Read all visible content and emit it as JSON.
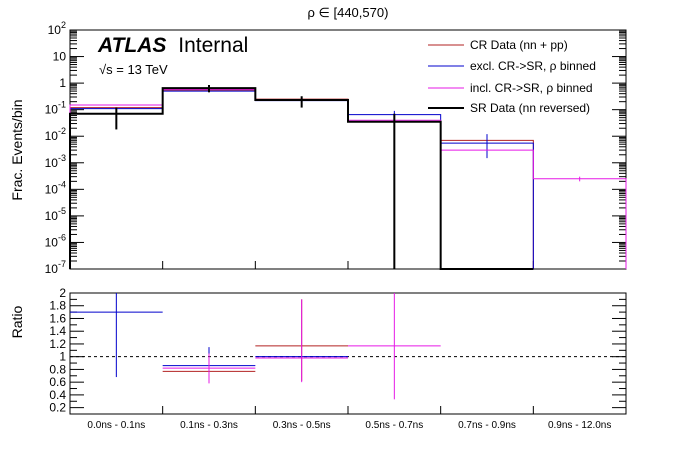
{
  "chart_data": [
    {
      "type": "line",
      "title": "ρ ∈ [440,570)",
      "ylabel": "Frac. Events/bin",
      "yscale": "log",
      "ylim": [
        1e-07,
        100
      ],
      "y_ticks": [
        "10^-7",
        "10^-6",
        "10^-5",
        "10^-4",
        "10^-3",
        "10^-2",
        "10^-1",
        "1",
        "10",
        "10^2"
      ],
      "categories": [
        "0.0ns - 0.1ns",
        "0.1ns - 0.3ns",
        "0.3ns - 0.5ns",
        "0.5ns - 0.7ns",
        "0.7ns - 0.9ns",
        "0.9ns - 12.0ns"
      ],
      "labels": {
        "atlas": "ATLAS",
        "internal": "Internal",
        "energy": "√s = 13 TeV"
      },
      "legend_position": "top-right",
      "series": [
        {
          "name": "CR Data (nn + pp)",
          "color": "#b22222",
          "values": [
            0.12,
            0.55,
            0.25,
            0.035,
            0.007,
            null
          ],
          "err_low": [
            null,
            null,
            null,
            null,
            null,
            null
          ],
          "err_high": [
            null,
            null,
            null,
            null,
            null,
            null
          ]
        },
        {
          "name": "excl. CR->SR, ρ binned",
          "color": "#0000cc",
          "values": [
            0.11,
            0.5,
            0.22,
            0.065,
            0.0055,
            null
          ],
          "err_low": [
            null,
            null,
            null,
            1e-07,
            0.0015,
            null
          ],
          "err_high": [
            null,
            null,
            null,
            0.09,
            0.012,
            null
          ]
        },
        {
          "name": "incl. CR->SR, ρ binned",
          "color": "#e619e6",
          "values": [
            0.15,
            0.58,
            0.24,
            0.04,
            0.003,
            0.00025
          ],
          "err_low": [
            null,
            null,
            null,
            null,
            null,
            0.0002
          ],
          "err_high": [
            null,
            null,
            null,
            null,
            null,
            0.0003
          ]
        },
        {
          "name": "SR Data (nn reversed)",
          "color": "#000000",
          "values": [
            0.07,
            0.65,
            0.23,
            0.035,
            1e-07,
            null
          ],
          "err_low": [
            0.018,
            0.45,
            0.12,
            1e-07,
            null,
            null
          ],
          "err_high": [
            0.12,
            0.85,
            0.32,
            0.07,
            null,
            null
          ]
        }
      ]
    },
    {
      "type": "line",
      "ylabel": "Ratio",
      "ylim": [
        0.1,
        2.0
      ],
      "y_ticks": [
        "0.2",
        "0.4",
        "0.6",
        "0.8",
        "1",
        "1.2",
        "1.4",
        "1.6",
        "1.8",
        "2"
      ],
      "reference_line": 1,
      "categories": [
        "0.0ns - 0.1ns",
        "0.1ns - 0.3ns",
        "0.3ns - 0.5ns",
        "0.5ns - 0.7ns",
        "0.7ns - 0.9ns",
        "0.9ns - 12.0ns"
      ],
      "series": [
        {
          "color": "#b22222",
          "values": [
            null,
            0.77,
            1.17,
            null,
            null,
            null
          ],
          "err_low": [
            null,
            0.6,
            0.62,
            null,
            null,
            null
          ],
          "err_high": [
            null,
            0.95,
            1.9,
            null,
            null,
            null
          ]
        },
        {
          "color": "#0000cc",
          "values": [
            1.7,
            0.86,
            1.0,
            null,
            null,
            null
          ],
          "err_low": [
            0.68,
            0.72,
            null,
            null,
            null,
            null
          ],
          "err_high": [
            2.0,
            1.15,
            null,
            null,
            null,
            null
          ]
        },
        {
          "color": "#e619e6",
          "values": [
            null,
            0.82,
            0.98,
            1.17,
            null,
            null
          ],
          "err_low": [
            null,
            0.58,
            0.6,
            0.33,
            null,
            null
          ],
          "err_high": [
            null,
            1.05,
            1.9,
            2.0,
            null,
            null
          ]
        }
      ]
    }
  ]
}
